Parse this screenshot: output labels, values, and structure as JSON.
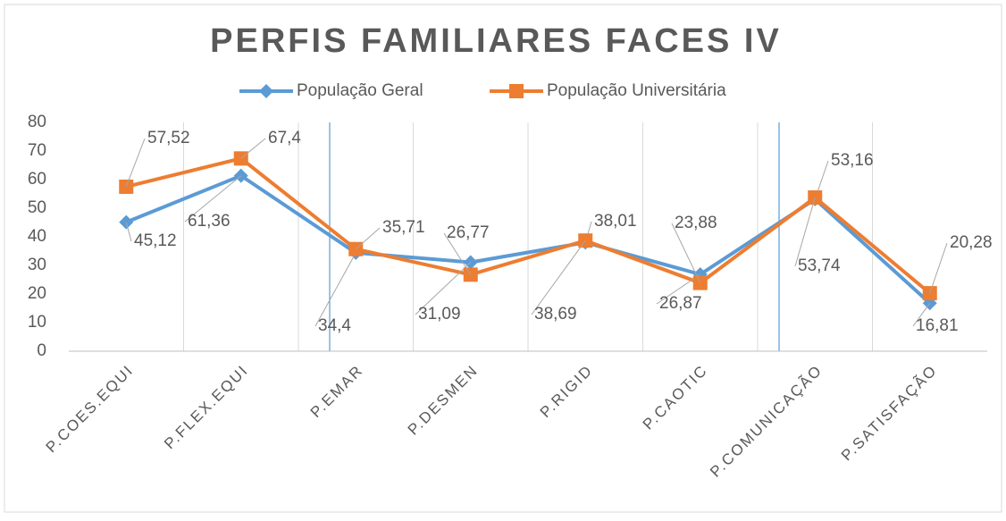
{
  "chart_data": {
    "type": "line",
    "title": "PERFIS FAMILIARES FACES IV",
    "categories": [
      "P.COES.EQUI",
      "P.FLEX.EQUI",
      "P.EMAR",
      "P.DESMEN",
      "P.RIGID",
      "P.CAOTIC",
      "P.COMUNICAÇÃO",
      "P.SATISFAÇÃO"
    ],
    "series": [
      {
        "name": "População Geral",
        "color": "#5b9bd5",
        "marker": "diamond",
        "values": [
          45.12,
          61.36,
          34.4,
          31.09,
          38.01,
          26.87,
          53.16,
          16.81
        ],
        "value_labels": [
          "45,12",
          "61,36",
          "34,4",
          "31,09",
          "38,01",
          "26,87",
          "53,16",
          "16,81"
        ]
      },
      {
        "name": "População Universitária",
        "color": "#ed7d31",
        "marker": "square",
        "values": [
          57.52,
          67.4,
          35.71,
          26.77,
          38.69,
          23.88,
          53.74,
          20.28
        ],
        "value_labels": [
          "57,52",
          "67,4",
          "35,71",
          "26,77",
          "38,69",
          "23,88",
          "53,74",
          "20,28"
        ]
      }
    ],
    "ylim": [
      0,
      80
    ],
    "yticks": [
      0,
      10,
      20,
      30,
      40,
      50,
      60,
      70,
      80
    ],
    "legend": "top"
  }
}
